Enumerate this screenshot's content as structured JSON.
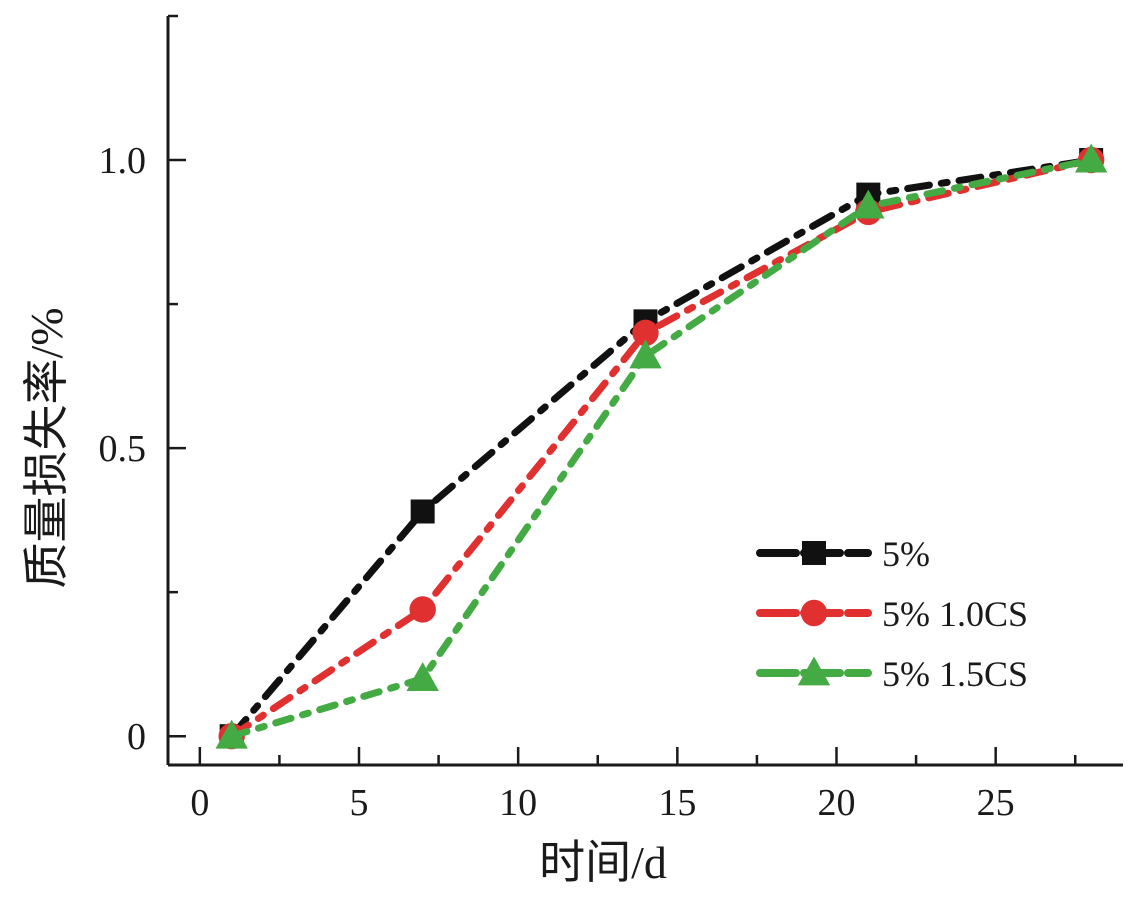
{
  "chart_data": {
    "type": "line",
    "title": "",
    "xlabel": "时间/d",
    "ylabel": "质量损失率/%",
    "xlim": [
      -1,
      29
    ],
    "ylim": [
      -0.05,
      1.25
    ],
    "x_major_ticks": [
      0,
      5,
      10,
      15,
      20,
      25
    ],
    "x_minor_ticks": [
      2.5,
      7.5,
      12.5,
      17.5,
      22.5,
      27.5
    ],
    "y_major_ticks": [
      0,
      0.5,
      1.0
    ],
    "y_minor_ticks": [
      0.25,
      0.75,
      1.25
    ],
    "x_tick_labels": [
      "0",
      "5",
      "10",
      "15",
      "20",
      "25"
    ],
    "y_tick_labels": [
      "0",
      "0.5",
      "1.0"
    ],
    "grid": false,
    "legend_position": "center-right",
    "series": [
      {
        "name": "5%",
        "color": "#111111",
        "marker": "square",
        "x": [
          1,
          7,
          14,
          21,
          28
        ],
        "y": [
          0.0,
          0.39,
          0.72,
          0.94,
          1.0
        ]
      },
      {
        "name": "5% 1.0CS",
        "color": "#e03030",
        "marker": "circle",
        "x": [
          1,
          7,
          14,
          21,
          28
        ],
        "y": [
          0.0,
          0.22,
          0.7,
          0.91,
          1.0
        ]
      },
      {
        "name": "5% 1.5CS",
        "color": "#44aa44",
        "marker": "triangle",
        "x": [
          1,
          7,
          14,
          21,
          28
        ],
        "y": [
          0.0,
          0.1,
          0.66,
          0.92,
          1.0
        ]
      }
    ]
  }
}
